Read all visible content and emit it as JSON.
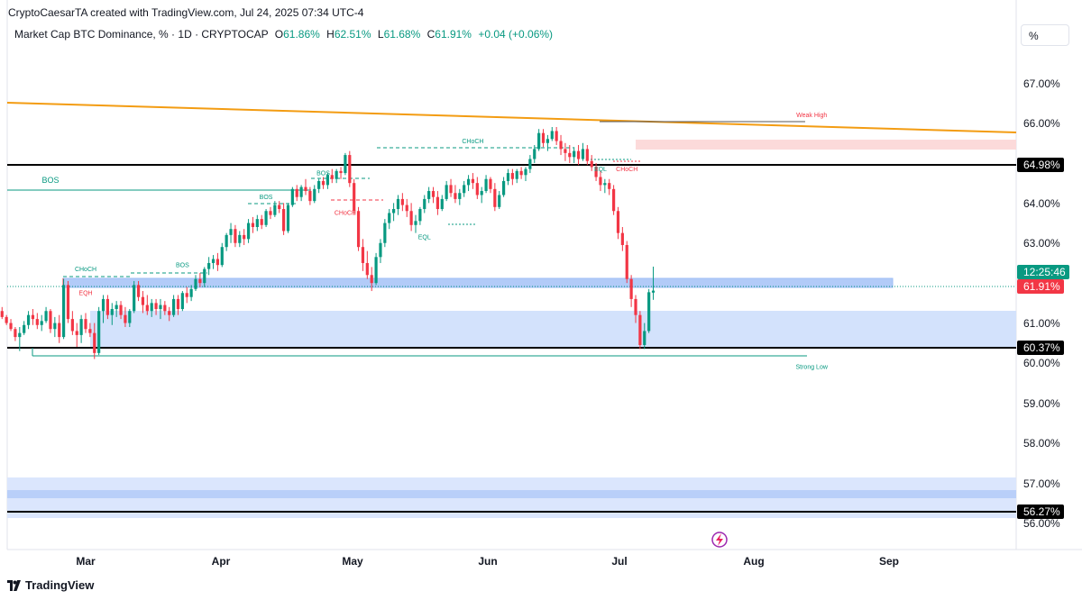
{
  "header": {
    "credit": "CryptoCaesarTA created with TradingView.com, Jul 24, 2025 07:34 UTC-4",
    "symbol": "Market Cap BTC Dominance, % · 1D · CRYPTOCAP",
    "open_label": "O",
    "open": "61.86%",
    "high_label": "H",
    "high": "62.51%",
    "low_label": "L",
    "low": "61.68%",
    "close_label": "C",
    "close": "61.91%",
    "change": "+0.04 (+0.06%)",
    "scale_button": "%"
  },
  "footer": {
    "brand": "TradingView",
    "logo_icon": "tradingview-logo-icon"
  },
  "colors": {
    "up": "#089981",
    "down": "#f23645",
    "trendline": "#f39c12",
    "zone_blue": "#b9cff9",
    "zone_red": "#fcdada"
  },
  "chart_data": {
    "type": "candlestick",
    "y_unit": "%",
    "ylim": [
      55.6,
      68.0
    ],
    "y_ticks": [
      "67.00%",
      "66.00%",
      "64.00%",
      "63.00%",
      "61.00%",
      "60.00%",
      "59.00%",
      "58.00%",
      "57.00%",
      "56.00%"
    ],
    "x_ticks": [
      "Mar",
      "Apr",
      "May",
      "Jun",
      "Jul",
      "Aug",
      "Sep"
    ],
    "price_labels": [
      {
        "text": "64.98%",
        "value": 64.98,
        "style": "black"
      },
      {
        "text": "60.37%",
        "value": 60.37,
        "style": "black"
      },
      {
        "text": "56.27%",
        "value": 56.27,
        "style": "black"
      },
      {
        "text": "12:25:46",
        "value": 62.28,
        "style": "green"
      },
      {
        "text": "61.91%",
        "value": 61.91,
        "style": "red"
      }
    ],
    "annotations": [
      {
        "text": "BOS",
        "date": "Feb 21",
        "y": 64.6,
        "color": "#089981",
        "size": "large"
      },
      {
        "text": "CHoCH",
        "date": "Mar 01",
        "y": 62.4,
        "color": "#089981"
      },
      {
        "text": "EQH",
        "date": "Mar 01",
        "y": 61.8,
        "color": "#f23645"
      },
      {
        "text": "BOS",
        "date": "Mar 23",
        "y": 62.5,
        "color": "#089981"
      },
      {
        "text": "BOS",
        "date": "Apr 11",
        "y": 64.2,
        "color": "#089981"
      },
      {
        "text": "BOS",
        "date": "Apr 24",
        "y": 64.8,
        "color": "#089981"
      },
      {
        "text": "CHoCH",
        "date": "Apr 29",
        "y": 63.8,
        "color": "#f23645"
      },
      {
        "text": "CHoCH",
        "date": "May 28",
        "y": 65.6,
        "color": "#089981"
      },
      {
        "text": "EQL",
        "date": "May 17",
        "y": 63.2,
        "color": "#089981"
      },
      {
        "text": "EQL",
        "date": "Jun 26",
        "y": 64.9,
        "color": "#089981"
      },
      {
        "text": "CHoCH",
        "date": "Jul 02",
        "y": 64.9,
        "color": "#f23645"
      },
      {
        "text": "Weak High",
        "date": "Aug 13",
        "y": 66.25,
        "color": "#f23645"
      },
      {
        "text": "Strong Low",
        "date": "Aug 13",
        "y": 59.95,
        "color": "#089981"
      }
    ],
    "candles": {
      "start_date": "Feb 10",
      "ohlc": [
        [
          61.4,
          61.5,
          61.2,
          61.25
        ],
        [
          61.25,
          61.3,
          61.05,
          61.1
        ],
        [
          61.1,
          61.2,
          60.9,
          60.95
        ],
        [
          60.95,
          61.0,
          60.65,
          60.75
        ],
        [
          60.75,
          61.0,
          60.4,
          60.85
        ],
        [
          60.85,
          61.15,
          60.8,
          61.05
        ],
        [
          61.05,
          61.4,
          60.95,
          61.3
        ],
        [
          61.3,
          61.45,
          61.05,
          61.2
        ],
        [
          61.2,
          61.35,
          60.95,
          61.05
        ],
        [
          61.05,
          61.3,
          60.9,
          61.15
        ],
        [
          61.15,
          61.5,
          61.1,
          61.4
        ],
        [
          61.4,
          61.45,
          60.85,
          60.95
        ],
        [
          60.95,
          61.25,
          60.75,
          61.1
        ],
        [
          61.1,
          61.3,
          60.6,
          60.75
        ],
        [
          60.75,
          62.2,
          60.7,
          62.05
        ],
        [
          62.05,
          62.15,
          61.1,
          61.2
        ],
        [
          61.2,
          61.4,
          60.8,
          60.9
        ],
        [
          60.9,
          61.1,
          60.5,
          60.8
        ],
        [
          60.8,
          61.3,
          60.6,
          61.2
        ],
        [
          61.2,
          61.35,
          60.85,
          60.95
        ],
        [
          60.95,
          61.1,
          60.75,
          60.85
        ],
        [
          60.85,
          61.1,
          60.2,
          60.35
        ],
        [
          60.35,
          61.5,
          60.3,
          61.4
        ],
        [
          61.4,
          61.8,
          61.1,
          61.7
        ],
        [
          61.7,
          61.8,
          61.2,
          61.3
        ],
        [
          61.3,
          61.6,
          61.05,
          61.45
        ],
        [
          61.45,
          61.65,
          61.25,
          61.55
        ],
        [
          61.55,
          61.65,
          61.2,
          61.3
        ],
        [
          61.3,
          61.5,
          61.0,
          61.1
        ],
        [
          61.1,
          61.45,
          61.0,
          61.4
        ],
        [
          61.4,
          62.15,
          61.35,
          62.05
        ],
        [
          62.05,
          62.15,
          61.65,
          61.75
        ],
        [
          61.75,
          61.9,
          61.35,
          61.55
        ],
        [
          61.55,
          61.8,
          61.3,
          61.4
        ],
        [
          61.4,
          61.7,
          61.25,
          61.6
        ],
        [
          61.6,
          61.7,
          61.3,
          61.45
        ],
        [
          61.45,
          61.7,
          61.2,
          61.55
        ],
        [
          61.55,
          61.65,
          61.3,
          61.4
        ],
        [
          61.4,
          61.5,
          61.15,
          61.3
        ],
        [
          61.3,
          61.8,
          61.25,
          61.7
        ],
        [
          61.7,
          61.8,
          61.3,
          61.45
        ],
        [
          61.45,
          61.9,
          61.4,
          61.85
        ],
        [
          61.85,
          62.0,
          61.6,
          61.75
        ],
        [
          61.75,
          62.05,
          61.65,
          61.95
        ],
        [
          61.95,
          62.3,
          61.9,
          62.2
        ],
        [
          62.2,
          62.35,
          62.0,
          62.1
        ],
        [
          62.1,
          62.5,
          62.0,
          62.45
        ],
        [
          62.45,
          62.75,
          62.3,
          62.6
        ],
        [
          62.6,
          62.8,
          62.45,
          62.7
        ],
        [
          62.7,
          62.85,
          62.4,
          62.55
        ],
        [
          62.55,
          63.1,
          62.5,
          63.0
        ],
        [
          63.0,
          63.35,
          62.9,
          63.3
        ],
        [
          63.3,
          63.6,
          63.1,
          63.45
        ],
        [
          63.45,
          63.55,
          63.0,
          63.1
        ],
        [
          63.1,
          63.4,
          63.0,
          63.3
        ],
        [
          63.3,
          63.45,
          63.05,
          63.2
        ],
        [
          63.2,
          63.7,
          63.1,
          63.6
        ],
        [
          63.6,
          63.75,
          63.35,
          63.5
        ],
        [
          63.5,
          63.8,
          63.4,
          63.7
        ],
        [
          63.7,
          63.8,
          63.45,
          63.55
        ],
        [
          63.55,
          63.95,
          63.5,
          63.9
        ],
        [
          63.9,
          64.0,
          63.7,
          63.8
        ],
        [
          63.8,
          64.15,
          63.75,
          64.05
        ],
        [
          64.05,
          64.15,
          63.85,
          63.95
        ],
        [
          63.95,
          64.1,
          63.3,
          63.4
        ],
        [
          63.4,
          64.1,
          63.35,
          64.05
        ],
        [
          64.05,
          64.5,
          64.0,
          64.45
        ],
        [
          64.45,
          64.55,
          64.15,
          64.25
        ],
        [
          64.25,
          64.55,
          64.15,
          64.5
        ],
        [
          64.5,
          64.7,
          64.3,
          64.4
        ],
        [
          64.4,
          64.5,
          64.05,
          64.15
        ],
        [
          64.15,
          64.55,
          64.1,
          64.45
        ],
        [
          64.45,
          64.7,
          64.35,
          64.65
        ],
        [
          64.65,
          64.75,
          64.45,
          64.55
        ],
        [
          64.55,
          64.85,
          64.45,
          64.8
        ],
        [
          64.8,
          64.95,
          64.6,
          64.7
        ],
        [
          64.7,
          64.95,
          64.6,
          64.9
        ],
        [
          64.9,
          65.0,
          64.7,
          64.85
        ],
        [
          64.85,
          65.35,
          64.8,
          65.3
        ],
        [
          65.3,
          65.4,
          64.5,
          64.6
        ],
        [
          64.6,
          64.7,
          63.8,
          63.9
        ],
        [
          63.9,
          64.0,
          62.9,
          63.0
        ],
        [
          63.0,
          63.2,
          62.4,
          62.6
        ],
        [
          62.6,
          62.9,
          62.2,
          62.3
        ],
        [
          62.3,
          62.5,
          61.9,
          62.1
        ],
        [
          62.1,
          62.85,
          62.05,
          62.75
        ],
        [
          62.75,
          63.2,
          62.6,
          63.1
        ],
        [
          63.1,
          63.7,
          63.0,
          63.6
        ],
        [
          63.6,
          63.95,
          63.45,
          63.85
        ],
        [
          63.85,
          64.1,
          63.65,
          63.95
        ],
        [
          63.95,
          64.3,
          63.8,
          64.2
        ],
        [
          64.2,
          64.35,
          63.9,
          64.05
        ],
        [
          64.05,
          64.2,
          63.75,
          63.9
        ],
        [
          63.9,
          64.1,
          63.4,
          63.55
        ],
        [
          63.55,
          63.8,
          63.35,
          63.65
        ],
        [
          63.65,
          64.0,
          63.55,
          63.95
        ],
        [
          63.95,
          64.3,
          63.85,
          64.2
        ],
        [
          64.2,
          64.5,
          64.1,
          64.4
        ],
        [
          64.4,
          64.5,
          64.1,
          64.25
        ],
        [
          64.25,
          64.4,
          63.8,
          63.95
        ],
        [
          63.95,
          64.3,
          63.9,
          64.2
        ],
        [
          64.2,
          64.65,
          64.15,
          64.55
        ],
        [
          64.55,
          64.7,
          64.25,
          64.35
        ],
        [
          64.35,
          64.55,
          64.1,
          64.2
        ],
        [
          64.2,
          64.45,
          64.05,
          64.35
        ],
        [
          64.35,
          64.65,
          64.25,
          64.55
        ],
        [
          64.55,
          64.8,
          64.4,
          64.7
        ],
        [
          64.7,
          64.85,
          64.45,
          64.6
        ],
        [
          64.6,
          64.75,
          64.2,
          64.3
        ],
        [
          64.3,
          64.5,
          64.1,
          64.4
        ],
        [
          64.4,
          64.8,
          64.35,
          64.7
        ],
        [
          64.7,
          64.75,
          64.35,
          64.45
        ],
        [
          64.45,
          64.6,
          63.9,
          64.0
        ],
        [
          64.0,
          64.4,
          63.95,
          64.3
        ],
        [
          64.3,
          64.75,
          64.25,
          64.65
        ],
        [
          64.65,
          64.95,
          64.55,
          64.85
        ],
        [
          64.85,
          64.95,
          64.55,
          64.7
        ],
        [
          64.7,
          64.95,
          64.6,
          64.9
        ],
        [
          64.9,
          65.0,
          64.7,
          64.8
        ],
        [
          64.8,
          65.0,
          64.65,
          64.95
        ],
        [
          64.95,
          65.3,
          64.85,
          65.2
        ],
        [
          65.2,
          65.55,
          65.1,
          65.45
        ],
        [
          65.45,
          65.95,
          65.4,
          65.85
        ],
        [
          65.85,
          65.95,
          65.5,
          65.6
        ],
        [
          65.6,
          65.8,
          65.4,
          65.7
        ],
        [
          65.7,
          66.0,
          65.65,
          65.9
        ],
        [
          65.9,
          66.0,
          65.55,
          65.65
        ],
        [
          65.65,
          65.8,
          65.3,
          65.45
        ],
        [
          65.45,
          65.6,
          65.15,
          65.35
        ],
        [
          65.35,
          65.55,
          65.1,
          65.25
        ],
        [
          65.25,
          65.5,
          65.1,
          65.4
        ],
        [
          65.4,
          65.55,
          65.05,
          65.2
        ],
        [
          65.2,
          65.6,
          65.15,
          65.45
        ],
        [
          65.45,
          65.55,
          65.05,
          65.15
        ],
        [
          65.15,
          65.3,
          64.9,
          65.0
        ],
        [
          65.0,
          65.1,
          64.65,
          64.75
        ],
        [
          64.75,
          64.9,
          64.4,
          64.55
        ],
        [
          64.55,
          64.7,
          64.35,
          64.6
        ],
        [
          64.6,
          64.7,
          64.3,
          64.45
        ],
        [
          64.45,
          64.55,
          63.8,
          63.9
        ],
        [
          63.9,
          64.0,
          63.2,
          63.35
        ],
        [
          63.35,
          63.5,
          62.9,
          63.05
        ],
        [
          63.05,
          63.15,
          62.1,
          62.2
        ],
        [
          62.2,
          62.3,
          61.5,
          61.7
        ],
        [
          61.7,
          61.8,
          61.1,
          61.3
        ],
        [
          61.3,
          61.4,
          60.45,
          60.55
        ],
        [
          60.55,
          61.1,
          60.45,
          60.9
        ],
        [
          60.9,
          61.95,
          60.85,
          61.87
        ],
        [
          61.86,
          62.51,
          61.68,
          61.91
        ]
      ]
    }
  }
}
